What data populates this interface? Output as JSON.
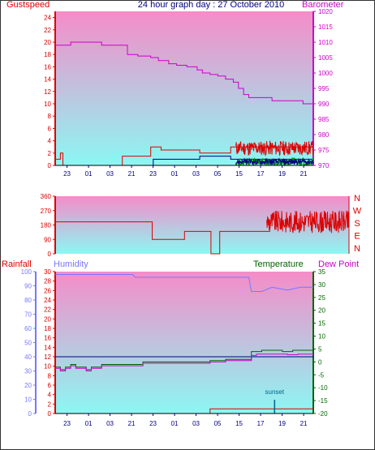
{
  "title": "24 hour graph day : 27 October 2010",
  "colors": {
    "panel_top": "#f58cc8",
    "panel_bottom": "#8cf7f3",
    "red": "#dd0000",
    "purple": "#cc00cc",
    "blue": "#7777ff",
    "dark_green": "#006600",
    "green": "#00aa00",
    "navy": "#000080"
  },
  "x_hour_labels": [
    "23",
    "01",
    "03",
    "21",
    "23",
    "01",
    "03",
    "05",
    "15",
    "17",
    "19",
    "21"
  ],
  "chart_data": [
    {
      "type": "line",
      "name": "wind-barometer",
      "labels": {
        "left": "Gustspeed",
        "right": "Barometer"
      },
      "left_axis": {
        "ticks": [
          0,
          2,
          4,
          6,
          8,
          10,
          12,
          14,
          16,
          18,
          20,
          22,
          24
        ],
        "ylim": [
          0,
          25
        ]
      },
      "right_axis": {
        "ticks": [
          970,
          975,
          980,
          985,
          990,
          995,
          1000,
          1005,
          1010,
          1015,
          1020
        ],
        "ylim": [
          970,
          1020
        ]
      },
      "x_range": [
        0,
        100
      ],
      "series": [
        {
          "axis": "right",
          "color": "#cc00cc",
          "step": true,
          "x": [
            0,
            5,
            6,
            15,
            18,
            27,
            28,
            31,
            32,
            37,
            40,
            44,
            47,
            51,
            55,
            57,
            60,
            63,
            66,
            69,
            71,
            72,
            73,
            75,
            84,
            85,
            88,
            96,
            100
          ],
          "y": [
            1009,
            1009,
            1010,
            1010,
            1009,
            1009,
            1006,
            1006,
            1005.5,
            1005,
            1004,
            1003,
            1002.5,
            1002,
            1001,
            1000,
            999.5,
            999,
            998,
            997,
            995,
            995,
            993,
            992,
            991,
            991,
            991,
            990,
            990
          ]
        },
        {
          "axis": "left",
          "color": "#dd0000",
          "step": true,
          "x": [
            0,
            1,
            2,
            3,
            4,
            25,
            26,
            36,
            37,
            40,
            41,
            55,
            56,
            67,
            68,
            100
          ],
          "y": [
            1,
            1,
            2,
            0,
            0,
            0,
            1.5,
            1.5,
            3,
            3,
            2.5,
            2.5,
            2,
            2,
            3,
            3
          ]
        },
        {
          "axis": "left",
          "color": "#000080",
          "step": true,
          "x": [
            0,
            37,
            38,
            55,
            56,
            67,
            68,
            100
          ],
          "y": [
            0,
            0,
            1,
            1,
            1.5,
            1.5,
            1,
            1
          ]
        }
      ],
      "noise": [
        {
          "axis": "left",
          "color": "#dd0000",
          "x0": 70,
          "x1": 100,
          "base": 2.8,
          "amp": 1.2,
          "seed": 11
        },
        {
          "axis": "left",
          "color": "#00aa00",
          "x0": 70,
          "x1": 100,
          "base": 0.5,
          "amp": 0.7,
          "seed": 27
        },
        {
          "axis": "left",
          "color": "#000080",
          "x0": 70,
          "x1": 100,
          "base": 0.6,
          "amp": 0.5,
          "seed": 45
        }
      ]
    },
    {
      "type": "line",
      "name": "wind-direction",
      "labels": {
        "right_letters": [
          "N",
          "W",
          "S",
          "E",
          "N"
        ]
      },
      "left_axis": {
        "ticks": [
          0,
          90,
          180,
          270,
          360
        ],
        "ylim": [
          0,
          360
        ]
      },
      "x_range": [
        0,
        100
      ],
      "series": [
        {
          "axis": "left",
          "color": "#dd0000",
          "step": true,
          "x": [
            0,
            32,
            33,
            43,
            44,
            52,
            53,
            55,
            56,
            58,
            59,
            60,
            61,
            72,
            73
          ],
          "y": [
            200,
            200,
            90,
            90,
            140,
            140,
            0,
            0,
            140,
            140,
            140,
            140,
            140,
            140,
            210
          ]
        }
      ],
      "noise": [
        {
          "axis": "left",
          "color": "#dd0000",
          "x0": 72,
          "x1": 100,
          "base": 200,
          "amp": 70,
          "seed": 9
        }
      ]
    },
    {
      "type": "line",
      "name": "rain-humidity-temp",
      "labels": {
        "left": "Rainfall",
        "left2": "Humidity",
        "right": "Temperature",
        "right2": "Dew Point",
        "annotation": "sunset"
      },
      "left_axis": {
        "ticks": [
          0,
          10,
          20,
          30,
          40,
          50,
          60,
          70,
          80,
          90,
          100
        ],
        "ylim": [
          0,
          100
        ]
      },
      "inner_axis": {
        "ticks": [
          0,
          2,
          4,
          6,
          8,
          10,
          12,
          14,
          16,
          18,
          20,
          22,
          24,
          26,
          28,
          30
        ],
        "ylim": [
          0,
          30
        ]
      },
      "right_axis": {
        "ticks": [
          -20,
          -15,
          -10,
          -5,
          0,
          5,
          10,
          15,
          20,
          25,
          30,
          35
        ],
        "ylim": [
          -20,
          35
        ]
      },
      "x_range": [
        0,
        100
      ],
      "series": [
        {
          "axis": "left",
          "color": "#7777ff",
          "step": false,
          "x": [
            0,
            30,
            31,
            60,
            61,
            75,
            76,
            80,
            84,
            87,
            90,
            95,
            100
          ],
          "y": [
            98,
            98,
            96,
            96,
            96,
            96,
            86,
            86,
            89,
            88,
            87,
            89,
            89
          ]
        },
        {
          "axis": "left",
          "color": "#000080",
          "step": false,
          "x": [
            0,
            100
          ],
          "y": [
            40,
            40
          ]
        },
        {
          "axis": "right",
          "color": "#006600",
          "step": true,
          "x": [
            0,
            2,
            4,
            6,
            8,
            12,
            14,
            18,
            22,
            30,
            34,
            50,
            60,
            66,
            76,
            77,
            80,
            84,
            88,
            92,
            96,
            100
          ],
          "y": [
            -2,
            -3,
            -2,
            -1,
            -2,
            -3,
            -2,
            -1,
            -1,
            -1,
            0,
            0,
            0.5,
            1,
            4,
            4,
            4.5,
            4.5,
            4,
            4.5,
            4.5,
            5
          ]
        },
        {
          "axis": "right",
          "color": "#cc00cc",
          "step": true,
          "x": [
            0,
            2,
            4,
            6,
            8,
            12,
            14,
            18,
            22,
            30,
            34,
            50,
            60,
            66,
            76,
            78,
            82,
            86,
            90,
            94,
            100
          ],
          "y": [
            -2.5,
            -3.5,
            -2.5,
            -1.5,
            -2.5,
            -3.5,
            -2.5,
            -1.5,
            -1.5,
            -1.5,
            -0.5,
            -0.5,
            0,
            0.5,
            2.5,
            3,
            3,
            3,
            2.8,
            3,
            3
          ]
        },
        {
          "axis": "inner",
          "color": "#dd0000",
          "step": true,
          "x": [
            0,
            59,
            60,
            100
          ],
          "y": [
            0,
            0,
            1,
            1
          ]
        }
      ],
      "sunset_x": 85
    }
  ]
}
